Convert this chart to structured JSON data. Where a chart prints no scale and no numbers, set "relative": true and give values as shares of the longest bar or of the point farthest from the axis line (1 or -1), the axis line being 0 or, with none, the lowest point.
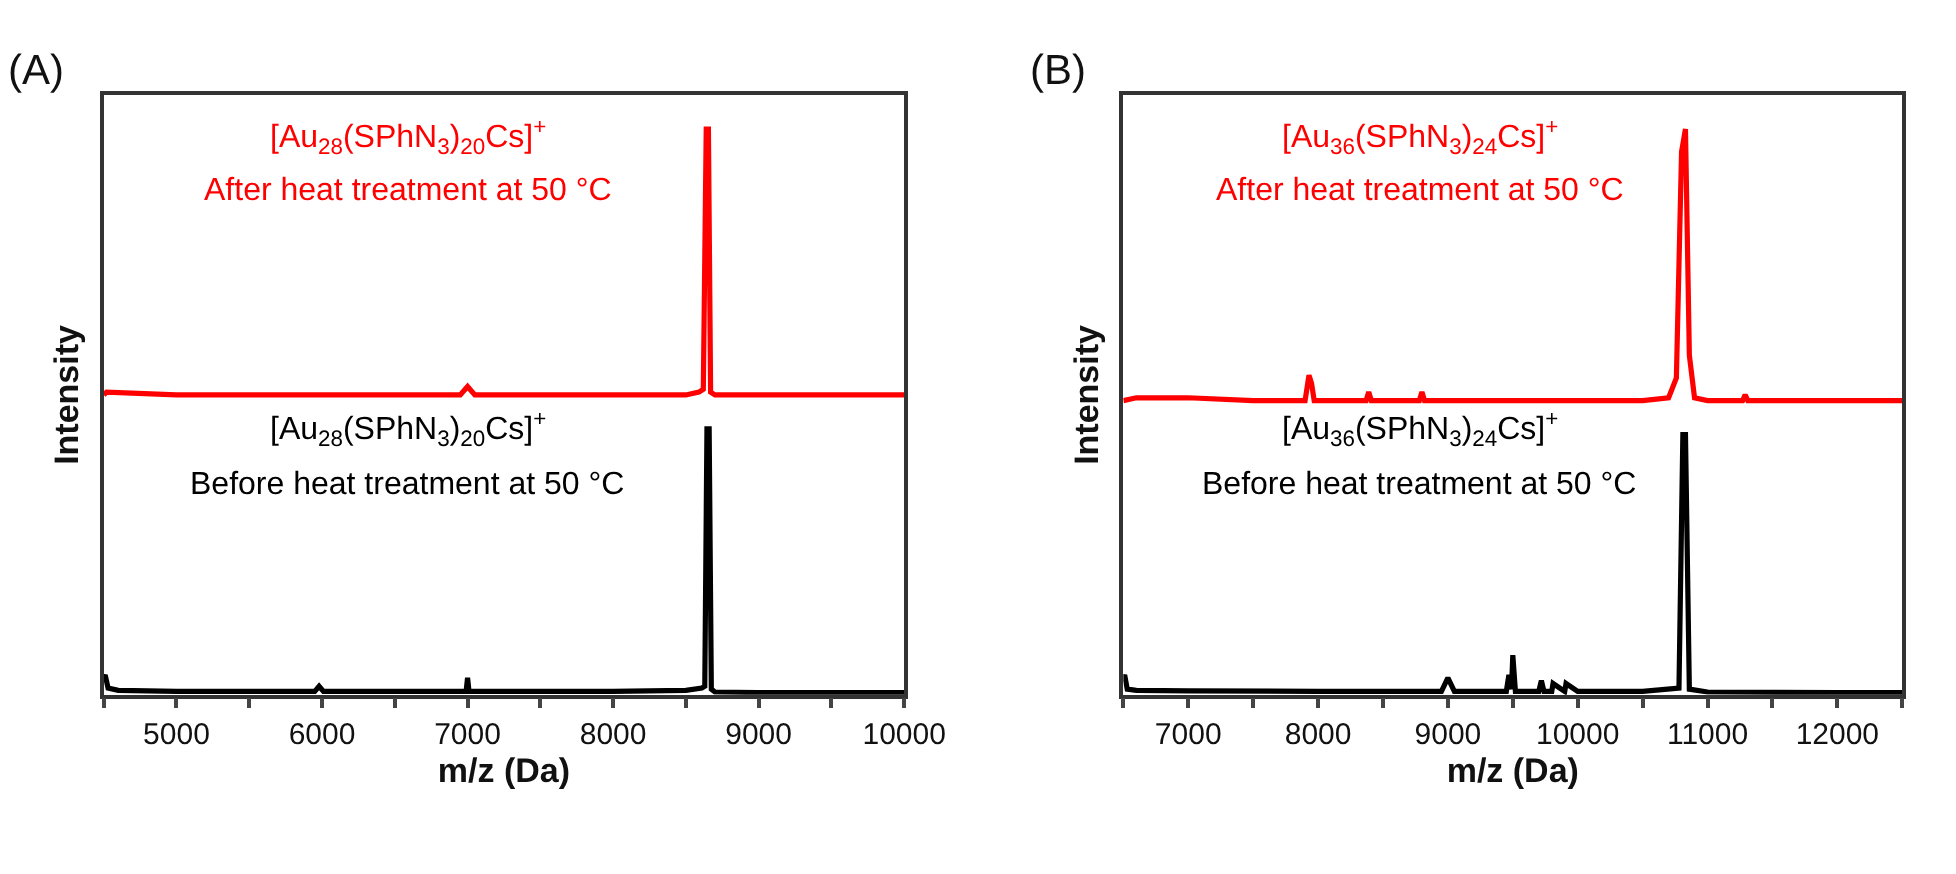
{
  "chart_data": [
    {
      "type": "line",
      "title": "(A)",
      "xlabel": "m/z (Da)",
      "ylabel": "Intensity",
      "relative": true,
      "tick_labels": "x",
      "marker": "none",
      "line_style": "solid",
      "xlim": [
        4500,
        10000
      ],
      "xticks": [
        {
          "value": 4500,
          "label": null
        },
        5000,
        {
          "value": 5500,
          "label": null
        },
        6000,
        {
          "value": 6500,
          "label": null
        },
        7000,
        {
          "value": 7500,
          "label": null
        },
        8000,
        {
          "value": 8500,
          "label": null
        },
        9000,
        {
          "value": 9500,
          "label": null
        },
        10000
      ],
      "annotations": [
        "[Au$_{28}$(SPhN$_{3}$)$_{20}$Cs]$^{+}$",
        "After heat treatment at 50 °C",
        "[Au$_{28}$(SPhN$_{3}$)$_{20}$Cs]$^{+}$",
        "Before heat treatment at 50 °C"
      ],
      "series": [
        {
          "color": "#ff0000",
          "x": [
            4500,
            4520,
            5000,
            5500,
            6000,
            6500,
            6950,
            7000,
            7050,
            7500,
            8000,
            8500,
            8590,
            8620,
            8640,
            8655,
            8670,
            8700,
            9000,
            9500,
            10000
          ],
          "values": [
            0.53,
            0.535,
            0.53,
            0.53,
            0.53,
            0.53,
            0.53,
            0.545,
            0.53,
            0.53,
            0.53,
            0.53,
            0.535,
            0.54,
            1.0,
            1.0,
            0.535,
            0.53,
            0.53,
            0.53,
            0.53
          ]
        },
        {
          "color": "#000000",
          "x": [
            4500,
            4510,
            4530,
            4600,
            5000,
            5500,
            5950,
            5980,
            6010,
            6500,
            6990,
            7000,
            7010,
            7500,
            8000,
            8500,
            8610,
            8630,
            8645,
            8660,
            8675,
            8700,
            9000,
            9500,
            10000
          ],
          "values": [
            0.03,
            0.035,
            0.012,
            0.008,
            0.006,
            0.006,
            0.006,
            0.015,
            0.006,
            0.006,
            0.006,
            0.03,
            0.006,
            0.006,
            0.006,
            0.008,
            0.012,
            0.015,
            0.47,
            0.47,
            0.01,
            0.005,
            0.004,
            0.004,
            0.004
          ]
        }
      ]
    },
    {
      "type": "line",
      "title": "(B)",
      "xlabel": "m/z (Da)",
      "ylabel": "Intensity",
      "relative": true,
      "tick_labels": "x",
      "marker": "none",
      "line_style": "solid",
      "xlim": [
        6500,
        12500
      ],
      "xticks": [
        {
          "value": 6500,
          "label": null
        },
        7000,
        {
          "value": 7500,
          "label": null
        },
        8000,
        {
          "value": 8500,
          "label": null
        },
        9000,
        {
          "value": 9500,
          "label": null
        },
        10000,
        {
          "value": 10500,
          "label": null
        },
        11000,
        {
          "value": 11500,
          "label": null
        },
        12000,
        {
          "value": 12500,
          "label": null
        }
      ],
      "annotations": [
        "[Au$_{36}$(SPhN$_{3}$)$_{24}$Cs]$^{+}$",
        "After heat treatment at 50 °C",
        "[Au$_{36}$(SPhN$_{3}$)$_{24}$Cs]$^{+}$",
        "Before heat treatment at 50 °C"
      ],
      "series": [
        {
          "color": "#ff0000",
          "x": [
            6500,
            6600,
            7000,
            7500,
            7900,
            7930,
            7950,
            7970,
            8000,
            8370,
            8390,
            8410,
            8780,
            8800,
            8820,
            9500,
            10000,
            10500,
            10700,
            10760,
            10800,
            10830,
            10860,
            10900,
            11000,
            11270,
            11290,
            11310,
            11800,
            12500
          ],
          "values": [
            0.52,
            0.525,
            0.525,
            0.52,
            0.52,
            0.565,
            0.55,
            0.52,
            0.52,
            0.52,
            0.535,
            0.52,
            0.52,
            0.535,
            0.52,
            0.52,
            0.52,
            0.52,
            0.525,
            0.56,
            0.96,
            1.0,
            0.6,
            0.525,
            0.52,
            0.52,
            0.53,
            0.52,
            0.52,
            0.52
          ]
        },
        {
          "color": "#000000",
          "x": [
            6500,
            6510,
            6530,
            6600,
            7000,
            8000,
            8950,
            9000,
            9050,
            9450,
            9470,
            9490,
            9500,
            9520,
            9700,
            9720,
            9740,
            9800,
            9810,
            9900,
            9910,
            10000,
            10500,
            10780,
            10810,
            10830,
            10860,
            11000,
            12000,
            12500
          ],
          "values": [
            0.03,
            0.035,
            0.01,
            0.008,
            0.007,
            0.006,
            0.006,
            0.03,
            0.006,
            0.006,
            0.035,
            0.01,
            0.07,
            0.006,
            0.006,
            0.025,
            0.006,
            0.006,
            0.02,
            0.006,
            0.02,
            0.006,
            0.006,
            0.012,
            0.46,
            0.46,
            0.01,
            0.005,
            0.004,
            0.004
          ]
        }
      ]
    }
  ]
}
